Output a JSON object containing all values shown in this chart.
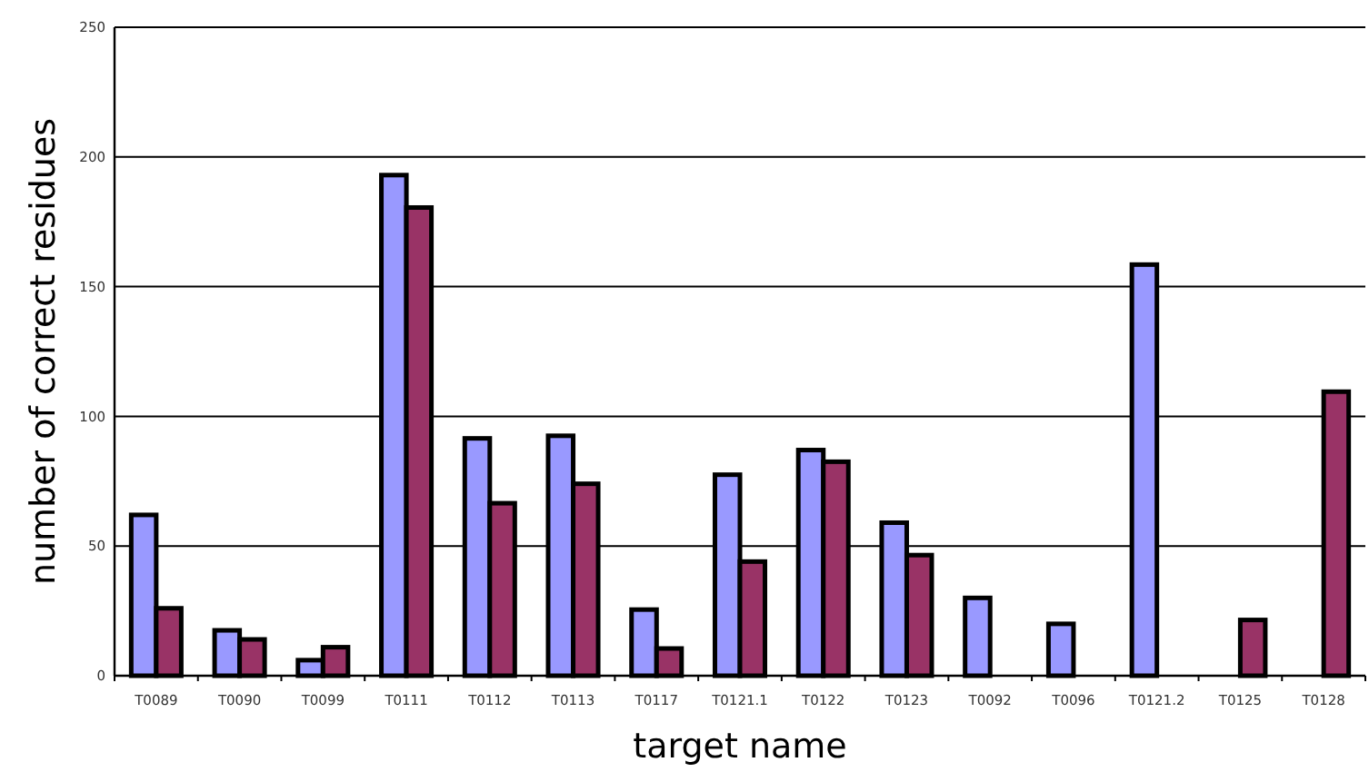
{
  "chart_data": {
    "type": "bar",
    "xlabel": "target name",
    "ylabel": "number of correct residues",
    "categories": [
      "T0089",
      "T0090",
      "T0099",
      "T0111",
      "T0112",
      "T0113",
      "T0117",
      "T0121.1",
      "T0122",
      "T0123",
      "T0092",
      "T0096",
      "T0121.2",
      "T0125",
      "T0128"
    ],
    "series": [
      {
        "color": "#9999ff",
        "values": [
          62,
          17.5,
          6,
          193,
          91.5,
          92.5,
          25.5,
          77.5,
          87,
          59,
          30,
          20,
          158.5,
          null,
          null
        ]
      },
      {
        "color": "#993366",
        "values": [
          26,
          14,
          11,
          180.5,
          66.5,
          74,
          10.5,
          44,
          82.5,
          46.5,
          null,
          null,
          null,
          21.5,
          109.5
        ]
      }
    ],
    "ylim": [
      0,
      250
    ],
    "yticks": [
      0,
      50,
      100,
      150,
      200,
      250
    ],
    "grid": "y"
  }
}
